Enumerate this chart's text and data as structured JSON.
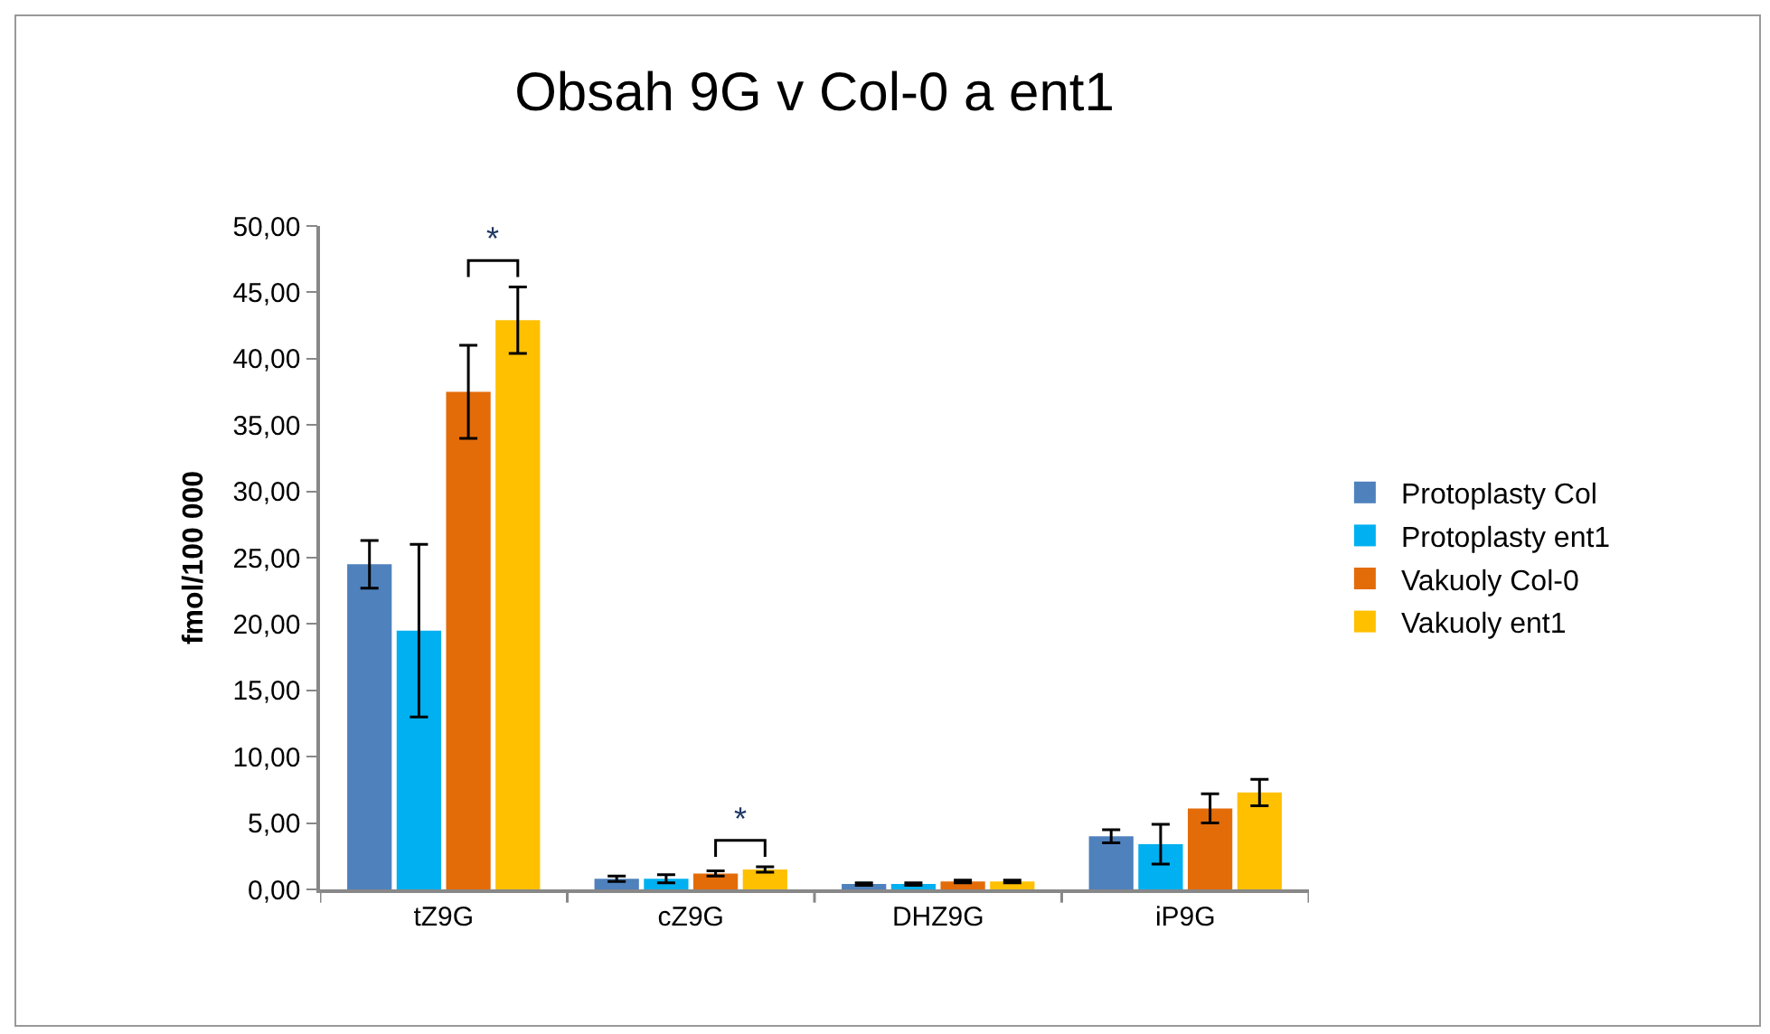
{
  "chart_data": {
    "type": "bar",
    "title": "Obsah 9G v Col-0 a ent1",
    "ylabel": "fmol/100 000",
    "categories": [
      "tZ9G",
      "cZ9G",
      "DHZ9G",
      "iP9G"
    ],
    "series": [
      {
        "name": "Protoplasty Col",
        "color": "#4f81bd",
        "values": [
          24.5,
          0.8,
          0.4,
          4.0
        ],
        "errors": [
          1.8,
          0.2,
          0.1,
          0.5
        ]
      },
      {
        "name": "Protoplasty ent1",
        "color": "#00b0f0",
        "values": [
          19.5,
          0.8,
          0.4,
          3.4
        ],
        "errors": [
          6.5,
          0.3,
          0.1,
          1.5
        ]
      },
      {
        "name": "Vakuoly Col-0",
        "color": "#e36c09",
        "values": [
          37.5,
          1.2,
          0.6,
          6.1
        ],
        "errors": [
          3.5,
          0.2,
          0.1,
          1.1
        ]
      },
      {
        "name": "Vakuoly ent1",
        "color": "#ffc000",
        "values": [
          42.9,
          1.5,
          0.6,
          7.3
        ],
        "errors": [
          2.5,
          0.2,
          0.1,
          1.0
        ]
      }
    ],
    "ylim": [
      0,
      50
    ],
    "yticks": [
      {
        "value": 0,
        "label": "0,00"
      },
      {
        "value": 5,
        "label": "5,00"
      },
      {
        "value": 10,
        "label": "10,00"
      },
      {
        "value": 15,
        "label": "15,00"
      },
      {
        "value": 20,
        "label": "20,00"
      },
      {
        "value": 25,
        "label": "25,00"
      },
      {
        "value": 30,
        "label": "30,00"
      },
      {
        "value": 35,
        "label": "35,00"
      },
      {
        "value": 40,
        "label": "40,00"
      },
      {
        "value": 45,
        "label": "45,00"
      },
      {
        "value": 50,
        "label": "50,00"
      }
    ],
    "annotations": [
      "*",
      "*"
    ],
    "grid": false,
    "legend": "right"
  }
}
